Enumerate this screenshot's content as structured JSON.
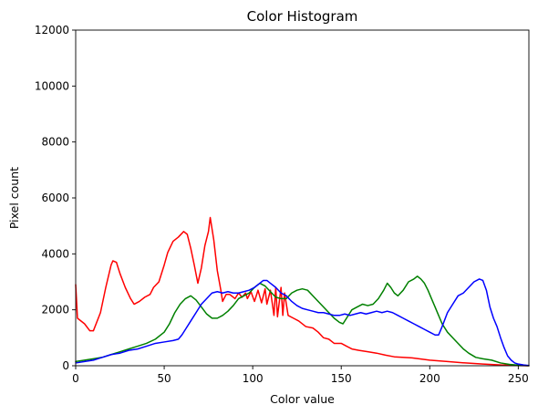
{
  "chart_data": {
    "type": "line",
    "title": "Color Histogram",
    "xlabel": "Color value",
    "ylabel": "Pixel count",
    "xlim": [
      0,
      256
    ],
    "ylim": [
      0,
      12000
    ],
    "xticks": [
      0,
      50,
      100,
      150,
      200,
      250
    ],
    "yticks": [
      0,
      2000,
      4000,
      6000,
      8000,
      10000,
      12000
    ],
    "grid": false,
    "legend": "none",
    "series": [
      {
        "color": "#ff0000",
        "points": [
          [
            0,
            2900
          ],
          [
            1,
            1700
          ],
          [
            5,
            1500
          ],
          [
            8,
            1250
          ],
          [
            10,
            1250
          ],
          [
            14,
            1900
          ],
          [
            17,
            2800
          ],
          [
            20,
            3600
          ],
          [
            21,
            3750
          ],
          [
            23,
            3700
          ],
          [
            25,
            3300
          ],
          [
            28,
            2800
          ],
          [
            31,
            2400
          ],
          [
            33,
            2200
          ],
          [
            36,
            2300
          ],
          [
            39,
            2450
          ],
          [
            42,
            2550
          ],
          [
            44,
            2800
          ],
          [
            47,
            3000
          ],
          [
            50,
            3600
          ],
          [
            52,
            4050
          ],
          [
            55,
            4450
          ],
          [
            58,
            4600
          ],
          [
            61,
            4800
          ],
          [
            63,
            4700
          ],
          [
            65,
            4200
          ],
          [
            67,
            3600
          ],
          [
            69,
            2950
          ],
          [
            71,
            3500
          ],
          [
            73,
            4300
          ],
          [
            75,
            4800
          ],
          [
            76,
            5300
          ],
          [
            78,
            4500
          ],
          [
            80,
            3400
          ],
          [
            82,
            2700
          ],
          [
            83,
            2300
          ],
          [
            85,
            2550
          ],
          [
            87,
            2550
          ],
          [
            90,
            2400
          ],
          [
            92,
            2600
          ],
          [
            94,
            2450
          ],
          [
            96,
            2600
          ],
          [
            97,
            2400
          ],
          [
            99,
            2650
          ],
          [
            101,
            2300
          ],
          [
            103,
            2700
          ],
          [
            105,
            2250
          ],
          [
            107,
            2750
          ],
          [
            108,
            2200
          ],
          [
            110,
            2700
          ],
          [
            112,
            1800
          ],
          [
            113,
            2800
          ],
          [
            114,
            1750
          ],
          [
            116,
            2800
          ],
          [
            117,
            1800
          ],
          [
            118,
            2600
          ],
          [
            120,
            1800
          ],
          [
            123,
            1700
          ],
          [
            126,
            1600
          ],
          [
            130,
            1400
          ],
          [
            134,
            1350
          ],
          [
            137,
            1200
          ],
          [
            140,
            1000
          ],
          [
            143,
            950
          ],
          [
            146,
            800
          ],
          [
            150,
            800
          ],
          [
            153,
            700
          ],
          [
            156,
            600
          ],
          [
            160,
            550
          ],
          [
            165,
            500
          ],
          [
            170,
            450
          ],
          [
            175,
            380
          ],
          [
            180,
            320
          ],
          [
            190,
            280
          ],
          [
            200,
            200
          ],
          [
            210,
            150
          ],
          [
            220,
            100
          ],
          [
            230,
            60
          ],
          [
            240,
            30
          ],
          [
            250,
            10
          ],
          [
            256,
            0
          ]
        ]
      },
      {
        "color": "#008000",
        "points": [
          [
            0,
            150
          ],
          [
            5,
            200
          ],
          [
            10,
            250
          ],
          [
            15,
            300
          ],
          [
            20,
            400
          ],
          [
            25,
            500
          ],
          [
            30,
            600
          ],
          [
            35,
            700
          ],
          [
            40,
            800
          ],
          [
            45,
            950
          ],
          [
            50,
            1200
          ],
          [
            53,
            1500
          ],
          [
            56,
            1900
          ],
          [
            59,
            2200
          ],
          [
            62,
            2400
          ],
          [
            65,
            2500
          ],
          [
            68,
            2350
          ],
          [
            71,
            2100
          ],
          [
            74,
            1850
          ],
          [
            77,
            1700
          ],
          [
            80,
            1700
          ],
          [
            83,
            1800
          ],
          [
            86,
            1950
          ],
          [
            89,
            2150
          ],
          [
            92,
            2400
          ],
          [
            95,
            2500
          ],
          [
            98,
            2600
          ],
          [
            101,
            2800
          ],
          [
            104,
            2950
          ],
          [
            107,
            2850
          ],
          [
            110,
            2650
          ],
          [
            113,
            2450
          ],
          [
            116,
            2400
          ],
          [
            119,
            2400
          ],
          [
            122,
            2600
          ],
          [
            125,
            2700
          ],
          [
            128,
            2750
          ],
          [
            131,
            2700
          ],
          [
            134,
            2500
          ],
          [
            137,
            2300
          ],
          [
            140,
            2100
          ],
          [
            143,
            1900
          ],
          [
            146,
            1700
          ],
          [
            149,
            1550
          ],
          [
            151,
            1500
          ],
          [
            153,
            1700
          ],
          [
            156,
            2000
          ],
          [
            159,
            2100
          ],
          [
            162,
            2200
          ],
          [
            165,
            2150
          ],
          [
            168,
            2200
          ],
          [
            171,
            2400
          ],
          [
            174,
            2700
          ],
          [
            176,
            2950
          ],
          [
            178,
            2800
          ],
          [
            180,
            2600
          ],
          [
            182,
            2500
          ],
          [
            185,
            2700
          ],
          [
            188,
            3000
          ],
          [
            191,
            3100
          ],
          [
            193,
            3200
          ],
          [
            195,
            3100
          ],
          [
            197,
            2950
          ],
          [
            199,
            2700
          ],
          [
            201,
            2400
          ],
          [
            203,
            2100
          ],
          [
            205,
            1800
          ],
          [
            207,
            1500
          ],
          [
            210,
            1200
          ],
          [
            213,
            1000
          ],
          [
            216,
            800
          ],
          [
            219,
            600
          ],
          [
            222,
            450
          ],
          [
            226,
            300
          ],
          [
            230,
            250
          ],
          [
            235,
            200
          ],
          [
            240,
            100
          ],
          [
            245,
            50
          ],
          [
            250,
            20
          ],
          [
            256,
            0
          ]
        ]
      },
      {
        "color": "#0000ff",
        "points": [
          [
            0,
            100
          ],
          [
            5,
            150
          ],
          [
            10,
            200
          ],
          [
            15,
            300
          ],
          [
            20,
            400
          ],
          [
            25,
            450
          ],
          [
            30,
            550
          ],
          [
            35,
            600
          ],
          [
            40,
            700
          ],
          [
            45,
            800
          ],
          [
            50,
            850
          ],
          [
            55,
            900
          ],
          [
            58,
            950
          ],
          [
            60,
            1100
          ],
          [
            62,
            1300
          ],
          [
            65,
            1600
          ],
          [
            68,
            1900
          ],
          [
            71,
            2200
          ],
          [
            74,
            2400
          ],
          [
            77,
            2600
          ],
          [
            80,
            2650
          ],
          [
            83,
            2600
          ],
          [
            86,
            2650
          ],
          [
            89,
            2600
          ],
          [
            92,
            2600
          ],
          [
            95,
            2650
          ],
          [
            98,
            2700
          ],
          [
            101,
            2800
          ],
          [
            104,
            2950
          ],
          [
            106,
            3050
          ],
          [
            108,
            3050
          ],
          [
            110,
            2950
          ],
          [
            113,
            2800
          ],
          [
            116,
            2600
          ],
          [
            119,
            2500
          ],
          [
            122,
            2300
          ],
          [
            125,
            2150
          ],
          [
            128,
            2050
          ],
          [
            131,
            2000
          ],
          [
            134,
            1950
          ],
          [
            137,
            1900
          ],
          [
            140,
            1900
          ],
          [
            143,
            1850
          ],
          [
            146,
            1800
          ],
          [
            149,
            1800
          ],
          [
            152,
            1850
          ],
          [
            155,
            1800
          ],
          [
            158,
            1850
          ],
          [
            161,
            1900
          ],
          [
            164,
            1850
          ],
          [
            167,
            1900
          ],
          [
            170,
            1950
          ],
          [
            173,
            1900
          ],
          [
            176,
            1950
          ],
          [
            179,
            1900
          ],
          [
            182,
            1800
          ],
          [
            185,
            1700
          ],
          [
            188,
            1600
          ],
          [
            191,
            1500
          ],
          [
            194,
            1400
          ],
          [
            197,
            1300
          ],
          [
            200,
            1200
          ],
          [
            203,
            1100
          ],
          [
            205,
            1100
          ],
          [
            207,
            1400
          ],
          [
            210,
            1900
          ],
          [
            213,
            2200
          ],
          [
            216,
            2500
          ],
          [
            219,
            2600
          ],
          [
            222,
            2800
          ],
          [
            225,
            3000
          ],
          [
            228,
            3100
          ],
          [
            230,
            3050
          ],
          [
            232,
            2700
          ],
          [
            234,
            2100
          ],
          [
            236,
            1700
          ],
          [
            238,
            1400
          ],
          [
            240,
            1000
          ],
          [
            242,
            650
          ],
          [
            244,
            350
          ],
          [
            246,
            200
          ],
          [
            248,
            100
          ],
          [
            250,
            60
          ],
          [
            253,
            30
          ],
          [
            256,
            10
          ]
        ]
      }
    ]
  }
}
